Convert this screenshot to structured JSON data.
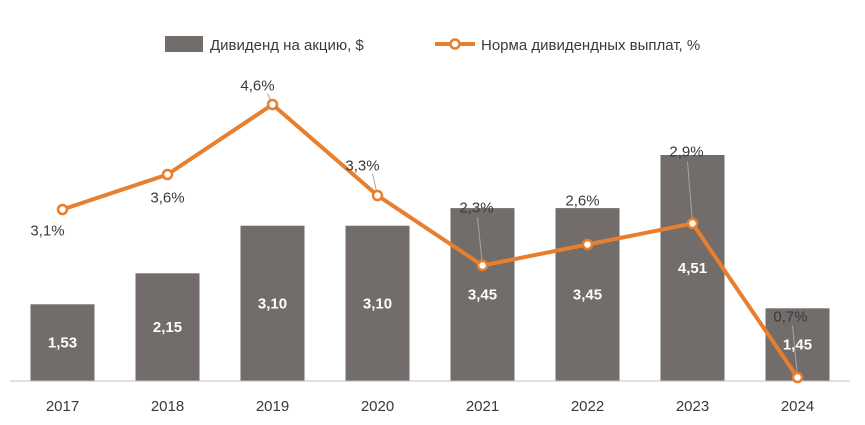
{
  "chart_data": {
    "type": "bar",
    "title": "",
    "xlabel": "",
    "ylabel": "",
    "grid": false,
    "legend_position": "top-center",
    "categories": [
      "2017",
      "2018",
      "2019",
      "2020",
      "2021",
      "2022",
      "2023",
      "2024"
    ],
    "series": [
      {
        "name": "Дивиденд на акцию, $",
        "type": "bar",
        "color": "#726c6b",
        "values": [
          1.53,
          2.15,
          3.1,
          3.1,
          3.45,
          3.45,
          4.51,
          1.45
        ],
        "labels": [
          "1,53",
          "2,15",
          "3,10",
          "3,10",
          "3,45",
          "3,45",
          "4,51",
          "1,45"
        ]
      },
      {
        "name": "Норма дивидендных выплат, %",
        "type": "line",
        "color": "#e87f2e",
        "values": [
          3.1,
          3.6,
          4.6,
          3.3,
          2.3,
          2.6,
          2.9,
          0.7
        ],
        "labels": [
          "3,1%",
          "3,6%",
          "4,6%",
          "3,3%",
          "2,3%",
          "2,6%",
          "2,9%",
          "0,7%"
        ]
      }
    ],
    "ylim_bar": [
      0,
      4.8
    ],
    "ylim_line": [
      0,
      5.0
    ]
  }
}
